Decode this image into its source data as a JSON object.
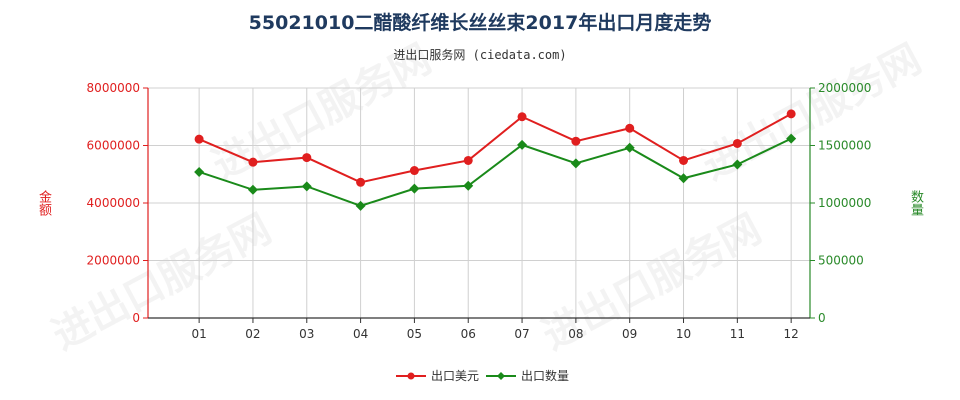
{
  "title": "55021010二醋酸纤维长丝丝束2017年出口月度走势",
  "subtitle": "进出口服务网 (ciedata.com)",
  "watermark": "进出口服务网",
  "chart_data": {
    "type": "line",
    "categories": [
      "01",
      "02",
      "03",
      "04",
      "05",
      "06",
      "07",
      "08",
      "09",
      "10",
      "11",
      "12"
    ],
    "left_axis": {
      "label": "金额",
      "ylim": [
        0,
        8000000
      ],
      "ticks": [
        "0",
        "2000000",
        "4000000",
        "6000000",
        "8000000"
      ],
      "color": "#e01f1f"
    },
    "right_axis": {
      "label": "数量",
      "ylim": [
        0,
        2000000
      ],
      "ticks": [
        "0",
        "500000",
        "1000000",
        "1500000",
        "2000000"
      ],
      "color": "#2a8a2a"
    },
    "series": [
      {
        "name": "出口美元",
        "axis": "left",
        "color": "#e01f1f",
        "values": [
          6220000,
          5420000,
          5580000,
          4720000,
          5130000,
          5480000,
          7000000,
          6150000,
          6600000,
          5480000,
          6070000,
          7100000
        ]
      },
      {
        "name": "出口数量",
        "axis": "right",
        "color": "#1a8a1a",
        "values": [
          1270000,
          1115000,
          1145000,
          975000,
          1125000,
          1150000,
          1505000,
          1345000,
          1480000,
          1215000,
          1335000,
          1560000
        ]
      }
    ],
    "grid": true,
    "legend_position": "bottom"
  }
}
